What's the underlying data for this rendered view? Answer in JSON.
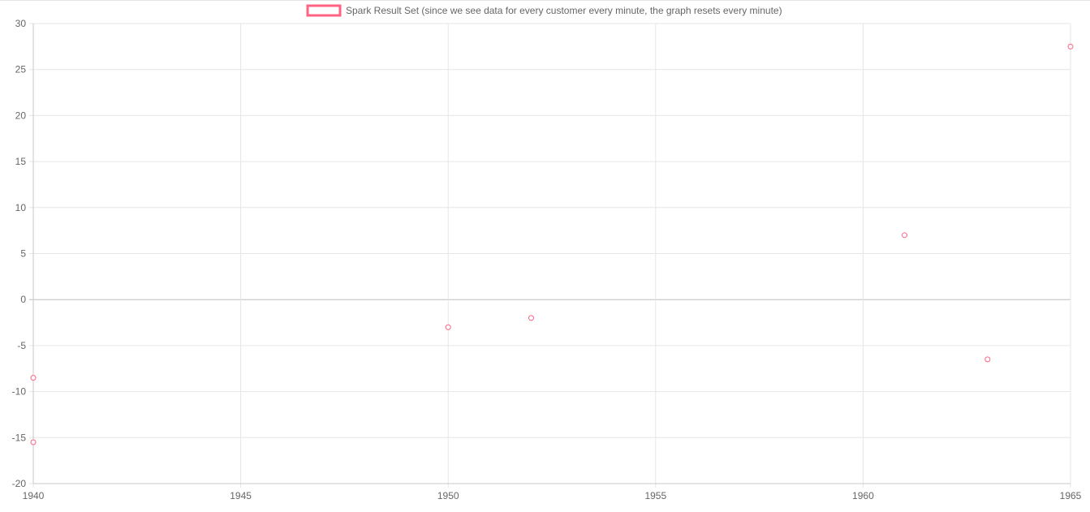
{
  "chart_data": {
    "type": "scatter",
    "title": "",
    "xlabel": "",
    "ylabel": "",
    "xlim": [
      1940,
      1965
    ],
    "ylim": [
      -20,
      30
    ],
    "x_ticks": [
      1940,
      1945,
      1950,
      1955,
      1960,
      1965
    ],
    "y_ticks": [
      30,
      25,
      20,
      15,
      10,
      5,
      0,
      -5,
      -10,
      -15,
      -20
    ],
    "grid": true,
    "legend_position": "top-center",
    "series": [
      {
        "name": "Spark Result Set (since we see data for every customer every minute, the graph resets every minute)",
        "color": "#ff6384",
        "points": [
          {
            "x": 1940,
            "y": -8.5
          },
          {
            "x": 1940,
            "y": -15.5
          },
          {
            "x": 1950,
            "y": -3
          },
          {
            "x": 1952,
            "y": -2
          },
          {
            "x": 1961,
            "y": 7
          },
          {
            "x": 1963,
            "y": -6.5
          },
          {
            "x": 1965,
            "y": 27.5
          }
        ]
      }
    ]
  },
  "colors": {
    "grid": "#e6e6e6",
    "zero_line": "#bdbdbd",
    "tick_text": "#666666",
    "legend_text": "#666666"
  }
}
